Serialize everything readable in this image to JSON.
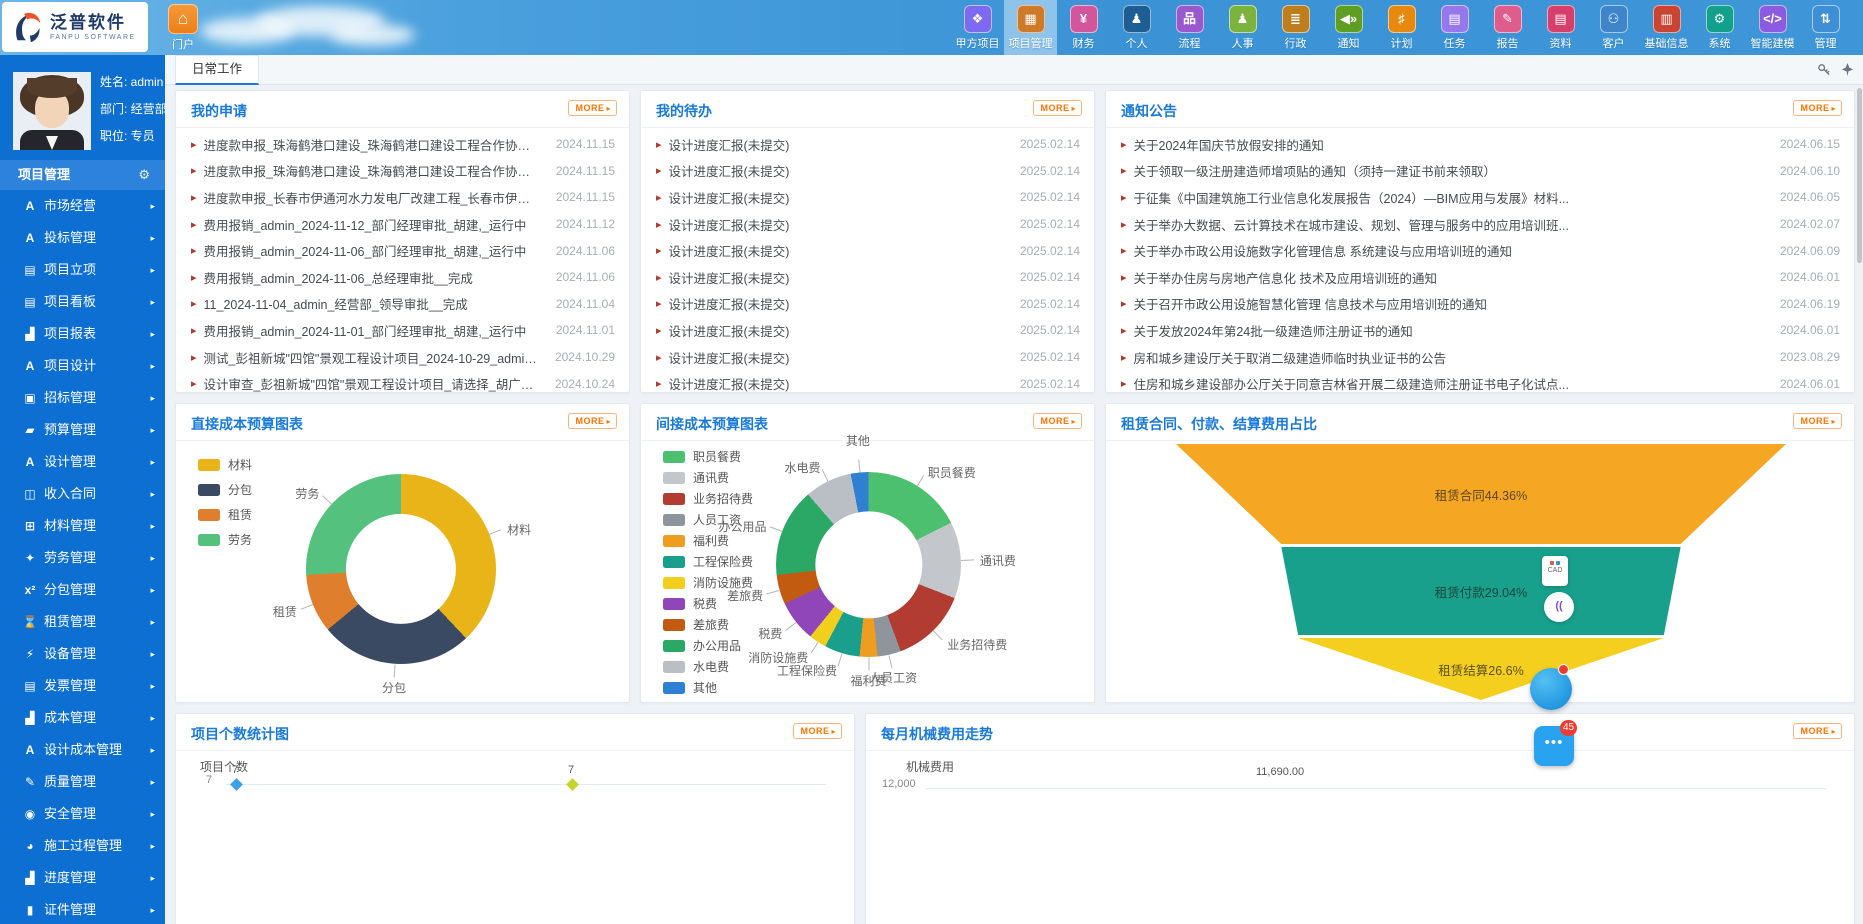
{
  "header": {
    "logo": {
      "title": "泛普软件",
      "subtitle": "FANPU SOFTWARE"
    },
    "portal": {
      "label": "门户"
    },
    "menu": [
      {
        "label": "甲方项目",
        "color": "#7c6bf0",
        "glyph": "❖",
        "icon": "client-projects-icon",
        "selected": false
      },
      {
        "label": "项目管理",
        "color": "#cf7a28",
        "glyph": "▦",
        "icon": "project-mgmt-grid-icon",
        "selected": true
      },
      {
        "label": "财务",
        "color": "#d2569b",
        "glyph": "¥",
        "icon": "finance-yen-icon",
        "selected": false
      },
      {
        "label": "个人",
        "color": "#1e5f93",
        "glyph": "♟",
        "icon": "personal-icon",
        "selected": false
      },
      {
        "label": "流程",
        "color": "#9a58cf",
        "glyph": "品",
        "icon": "workflow-icon",
        "selected": false
      },
      {
        "label": "人事",
        "color": "#7cb23e",
        "glyph": "♟",
        "icon": "hr-person-icon",
        "selected": false
      },
      {
        "label": "行政",
        "color": "#bf7e1e",
        "glyph": "≣",
        "icon": "admin-layers-icon",
        "selected": false
      },
      {
        "label": "通知",
        "color": "#5e9e22",
        "glyph": "◀»",
        "icon": "notice-speaker-icon",
        "selected": false
      },
      {
        "label": "计划",
        "color": "#e8890f",
        "glyph": "♯",
        "icon": "plan-sliders-icon",
        "selected": false
      },
      {
        "label": "任务",
        "color": "#9678ec",
        "glyph": "▤",
        "icon": "task-clipboard-icon",
        "selected": false
      },
      {
        "label": "报告",
        "color": "#df5d8d",
        "glyph": "✎",
        "icon": "report-mic-icon",
        "selected": false
      },
      {
        "label": "资料",
        "color": "#d63e6c",
        "glyph": "▤",
        "icon": "documents-icon",
        "selected": false
      },
      {
        "label": "客户",
        "color": "#3e86c9",
        "glyph": "⚇",
        "icon": "customers-icon",
        "selected": false
      },
      {
        "label": "基础信息",
        "color": "#c94432",
        "glyph": "▥",
        "icon": "base-info-icon",
        "selected": false
      },
      {
        "label": "系统",
        "color": "#12a08b",
        "glyph": "⚙",
        "icon": "system-gear-icon",
        "selected": false
      },
      {
        "label": "智能建模",
        "color": "#8b5ce2",
        "glyph": "</>",
        "icon": "smart-modeling-code-icon",
        "selected": false
      },
      {
        "label": "管理",
        "color": "#3e8fd6",
        "glyph": "⇅",
        "icon": "manage-sort-icon",
        "selected": false
      }
    ]
  },
  "sidebar": {
    "user": {
      "name_label": "姓名: admin",
      "dept_label": "部门: 经营部",
      "title_label": "职位: 专员"
    },
    "section": {
      "title": "项目管理"
    },
    "items": [
      {
        "label": "市场经营",
        "glyph": "A",
        "icon": "market-icon"
      },
      {
        "label": "投标管理",
        "glyph": "A",
        "icon": "bidding-icon"
      },
      {
        "label": "项目立项",
        "glyph": "▤",
        "icon": "project-setup-icon"
      },
      {
        "label": "项目看板",
        "glyph": "▤",
        "icon": "kanban-icon"
      },
      {
        "label": "项目报表",
        "glyph": "▟",
        "icon": "project-report-chart-icon"
      },
      {
        "label": "项目设计",
        "glyph": "A",
        "icon": "project-design-icon"
      },
      {
        "label": "招标管理",
        "glyph": "▣",
        "icon": "tender-inbox-icon"
      },
      {
        "label": "预算管理",
        "glyph": "▰",
        "icon": "budget-folder-icon"
      },
      {
        "label": "设计管理",
        "glyph": "A",
        "icon": "design-mgmt-icon"
      },
      {
        "label": "收入合同",
        "glyph": "◫",
        "icon": "income-contract-icon"
      },
      {
        "label": "材料管理",
        "glyph": "⊞",
        "icon": "materials-cart-icon"
      },
      {
        "label": "劳务管理",
        "glyph": "✦",
        "icon": "labor-icon"
      },
      {
        "label": "分包管理",
        "glyph": "x²",
        "icon": "subcontract-icon"
      },
      {
        "label": "租赁管理",
        "glyph": "⌛",
        "icon": "lease-hourglass-icon"
      },
      {
        "label": "设备管理",
        "glyph": "⚡",
        "icon": "equipment-plug-icon"
      },
      {
        "label": "发票管理",
        "glyph": "▤",
        "icon": "invoice-doc-icon"
      },
      {
        "label": "成本管理",
        "glyph": "▟",
        "icon": "cost-chart-icon"
      },
      {
        "label": "设计成本管理",
        "glyph": "A",
        "icon": "design-cost-icon"
      },
      {
        "label": "质量管理",
        "glyph": "✎",
        "icon": "quality-edit-icon"
      },
      {
        "label": "安全管理",
        "glyph": "◉",
        "icon": "safety-icon"
      },
      {
        "label": "施工过程管理",
        "glyph": "◕",
        "icon": "construction-process-icon"
      },
      {
        "label": "进度管理",
        "glyph": "▟",
        "icon": "progress-chart-icon"
      },
      {
        "label": "证件管理",
        "glyph": "▮",
        "icon": "certificate-id-icon"
      }
    ]
  },
  "tabs": [
    {
      "label": "日常工作"
    }
  ],
  "panels": {
    "applications": {
      "title": "我的申请",
      "more_label": "MORE",
      "items": [
        {
          "text": "进度款申报_珠海鹤港口建设_珠海鹤港口建设工程合作协议书_admin_...",
          "date": "2024.11.15"
        },
        {
          "text": "进度款申报_珠海鹤港口建设_珠海鹤港口建设工程合作协议书_admin_...",
          "date": "2024.11.15"
        },
        {
          "text": "进度款申报_长春市伊通河水力发电厂改建工程_长春市伊通河水力发电...",
          "date": "2024.11.15"
        },
        {
          "text": "费用报销_admin_2024-11-12_部门经理审批_胡建,_运行中",
          "date": "2024.11.12"
        },
        {
          "text": "费用报销_admin_2024-11-06_部门经理审批_胡建,_运行中",
          "date": "2024.11.06"
        },
        {
          "text": "费用报销_admin_2024-11-06_总经理审批__完成",
          "date": "2024.11.06"
        },
        {
          "text": "11_2024-11-04_admin_经营部_领导审批__完成",
          "date": "2024.11.04"
        },
        {
          "text": "费用报销_admin_2024-11-01_部门经理审批_胡建,_运行中",
          "date": "2024.11.01"
        },
        {
          "text": "测试_彭祖新城\"四馆\"景观工程设计项目_2024-10-29_admin_结束__完成",
          "date": "2024.10.29"
        },
        {
          "text": "设计审查_彭祖新城\"四馆\"景观工程设计项目_请选择_胡广生_2024-10-2...",
          "date": "2024.10.24"
        }
      ]
    },
    "todos": {
      "title": "我的待办",
      "more_label": "MORE",
      "items": [
        {
          "text": "设计进度汇报(未提交)",
          "date": "2025.02.14"
        },
        {
          "text": "设计进度汇报(未提交)",
          "date": "2025.02.14"
        },
        {
          "text": "设计进度汇报(未提交)",
          "date": "2025.02.14"
        },
        {
          "text": "设计进度汇报(未提交)",
          "date": "2025.02.14"
        },
        {
          "text": "设计进度汇报(未提交)",
          "date": "2025.02.14"
        },
        {
          "text": "设计进度汇报(未提交)",
          "date": "2025.02.14"
        },
        {
          "text": "设计进度汇报(未提交)",
          "date": "2025.02.14"
        },
        {
          "text": "设计进度汇报(未提交)",
          "date": "2025.02.14"
        },
        {
          "text": "设计进度汇报(未提交)",
          "date": "2025.02.14"
        },
        {
          "text": "设计进度汇报(未提交)",
          "date": "2025.02.14"
        }
      ]
    },
    "notices": {
      "title": "通知公告",
      "more_label": "MORE",
      "items": [
        {
          "text": "关于2024年国庆节放假安排的通知",
          "date": "2024.06.15"
        },
        {
          "text": "关于领取一级注册建造师增项贴的通知（须持一建证书前来领取）",
          "date": "2024.06.10"
        },
        {
          "text": "于征集《中国建筑施工行业信息化发展报告（2024）—BIM应用与发展》材料...",
          "date": "2024.06.05"
        },
        {
          "text": "关于举办大数据、云计算技术在城市建设、规划、管理与服务中的应用培训班...",
          "date": "2024.02.07"
        },
        {
          "text": "关于举办市政公用设施数字化管理信息 系统建设与应用培训班的通知",
          "date": "2024.06.09"
        },
        {
          "text": "关于举办住房与房地产信息化 技术及应用培训班的通知",
          "date": "2024.06.01"
        },
        {
          "text": "关于召开市政公用设施智慧化管理 信息技术与应用培训班的通知",
          "date": "2024.06.19"
        },
        {
          "text": "关于发放2024年第24批一级建造师注册证书的通知",
          "date": "2024.06.01"
        },
        {
          "text": "房和城乡建设厅关于取消二级建造师临时执业证书的公告",
          "date": "2023.08.29"
        },
        {
          "text": "住房和城乡建设部办公厅关于同意吉林省开展二级建造师注册证书电子化试点...",
          "date": "2024.06.01"
        }
      ]
    },
    "direct_cost": {
      "title": "直接成本预算图表",
      "more_label": "MORE"
    },
    "indirect_cost": {
      "title": "间接成本预算图表",
      "more_label": "MORE"
    },
    "rental": {
      "title": "租赁合同、付款、结算费用占比",
      "more_label": "MORE"
    },
    "project_count": {
      "title": "项目个数统计图",
      "more_label": "MORE"
    },
    "machine_cost": {
      "title": "每月机械费用走势",
      "more_label": "MORE"
    }
  },
  "chart_data": [
    {
      "type": "donut",
      "title": "直接成本预算图表",
      "legend_position": "top-left",
      "series": [
        {
          "name": "材料",
          "value": 38,
          "color": "#e9b417"
        },
        {
          "name": "分包",
          "value": 26,
          "color": "#3b4a63"
        },
        {
          "name": "租赁",
          "value": 10,
          "color": "#df7f2e"
        },
        {
          "name": "劳务",
          "value": 26,
          "color": "#55c17e"
        }
      ]
    },
    {
      "type": "donut",
      "title": "间接成本预算图表",
      "legend_position": "left",
      "series": [
        {
          "name": "职员餐费",
          "value": 17,
          "color": "#4cc06e"
        },
        {
          "name": "通讯费",
          "value": 13,
          "color": "#c3c7cb"
        },
        {
          "name": "业务招待费",
          "value": 13,
          "color": "#b23b32"
        },
        {
          "name": "人员工资",
          "value": 4,
          "color": "#8e959c"
        },
        {
          "name": "福利费",
          "value": 3,
          "color": "#ef9d1f"
        },
        {
          "name": "工程保险费",
          "value": 6,
          "color": "#1b9f8d"
        },
        {
          "name": "消防设施费",
          "value": 3,
          "color": "#f2cf1c"
        },
        {
          "name": "税费",
          "value": 7,
          "color": "#9046b8"
        },
        {
          "name": "差旅费",
          "value": 5,
          "color": "#c25a10"
        },
        {
          "name": "办公用品",
          "value": 15,
          "color": "#2ba865"
        },
        {
          "name": "水电费",
          "value": 8,
          "color": "#b9bfc4"
        },
        {
          "name": "其他",
          "value": 3,
          "color": "#2f7fd3"
        }
      ]
    },
    {
      "type": "funnel",
      "title": "租赁合同、付款、结算费用占比",
      "stages": [
        {
          "name": "租赁合同",
          "pct": 44.36,
          "label": "租赁合同44.36%",
          "color": "#f5a623"
        },
        {
          "name": "租赁付款",
          "pct": 29.04,
          "label": "租赁付款29.04%",
          "color": "#18a08c"
        },
        {
          "name": "租赁结算",
          "pct": 26.6,
          "label": "租赁结算26.6%",
          "color": "#f4cf1d"
        }
      ]
    },
    {
      "type": "line",
      "title": "项目个数统计图",
      "ylabel": "项目个数",
      "ytick_top": "7",
      "visible_points": [
        {
          "label": "7",
          "value": 7
        },
        {
          "label": "7",
          "value": 7
        }
      ],
      "marker_colors": [
        "#3ba0e8",
        "#c7d42a"
      ]
    },
    {
      "type": "line",
      "title": "每月机械费用走势",
      "ylabel": "机械费用",
      "ytick_top": "12,000",
      "visible_points": [
        {
          "label": "11,690.00",
          "value": 11690
        }
      ],
      "marker_colors": [
        "#3ba0e8"
      ]
    }
  ],
  "floating": {
    "cad_label": "CAD",
    "chat_dots": "•••",
    "badge_count": "45",
    "circle_glyph": "(("
  }
}
